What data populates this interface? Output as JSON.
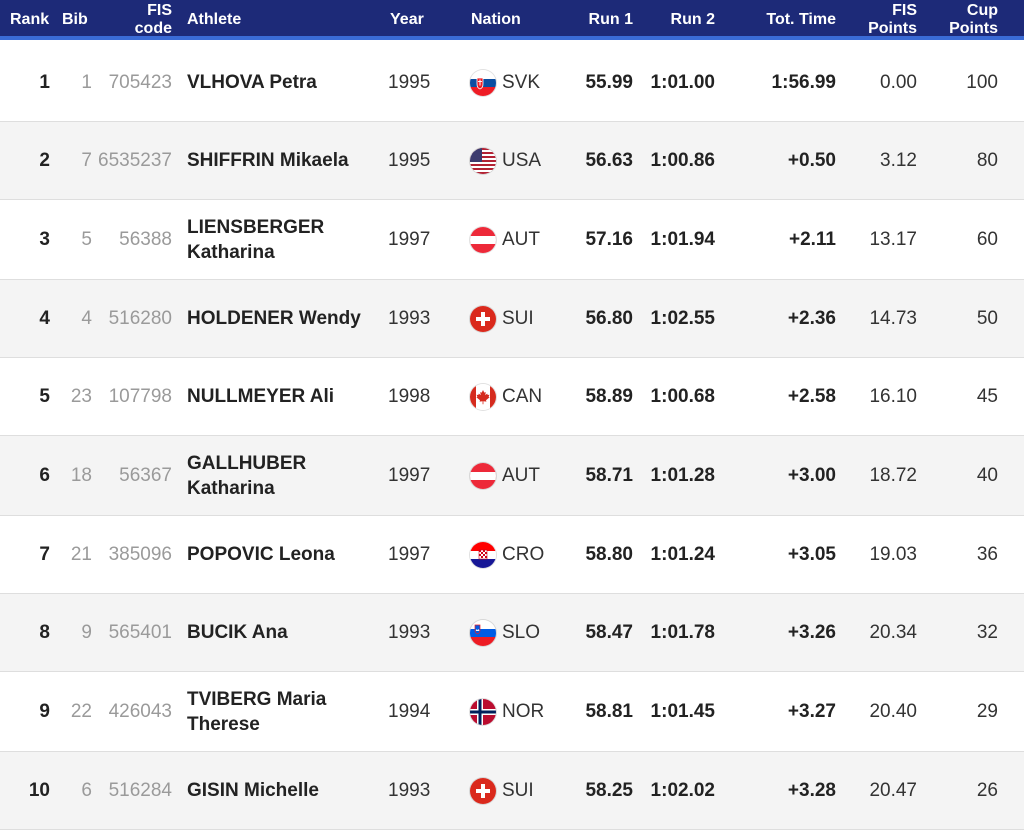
{
  "header": {
    "rank": "Rank",
    "bib": "Bib",
    "fis_code_line1": "FIS",
    "fis_code_line2": "code",
    "athlete": "Athlete",
    "year": "Year",
    "nation": "Nation",
    "run1": "Run 1",
    "run2": "Run 2",
    "tot_time": "Tot. Time",
    "fis_points_line1": "FIS",
    "fis_points_line2": "Points",
    "cup_points_line1": "Cup",
    "cup_points_line2": "Points"
  },
  "colors": {
    "header_bg": "#1d2a78",
    "header_accent": "#3a6bd6",
    "row_alt_bg": "#f4f4f4"
  },
  "rows": [
    {
      "rank": "1",
      "bib": "1",
      "fis_code": "705423",
      "athlete_line1": "VLHOVA Petra",
      "athlete_line2": "",
      "year": "1995",
      "nation": "SVK",
      "flag_icon": "slovakia-flag-icon",
      "run1": "55.99",
      "run2": "1:01.00",
      "tot_time": "1:56.99",
      "fis_points": "0.00",
      "cup_points": "100"
    },
    {
      "rank": "2",
      "bib": "7",
      "fis_code": "6535237",
      "athlete_line1": "SHIFFRIN Mikaela",
      "athlete_line2": "",
      "year": "1995",
      "nation": "USA",
      "flag_icon": "usa-flag-icon",
      "run1": "56.63",
      "run2": "1:00.86",
      "tot_time": "+0.50",
      "fis_points": "3.12",
      "cup_points": "80"
    },
    {
      "rank": "3",
      "bib": "5",
      "fis_code": "56388",
      "athlete_line1": "LIENSBERGER",
      "athlete_line2": "Katharina",
      "year": "1997",
      "nation": "AUT",
      "flag_icon": "austria-flag-icon",
      "run1": "57.16",
      "run2": "1:01.94",
      "tot_time": "+2.11",
      "fis_points": "13.17",
      "cup_points": "60"
    },
    {
      "rank": "4",
      "bib": "4",
      "fis_code": "516280",
      "athlete_line1": "HOLDENER Wendy",
      "athlete_line2": "",
      "year": "1993",
      "nation": "SUI",
      "flag_icon": "switzerland-flag-icon",
      "run1": "56.80",
      "run2": "1:02.55",
      "tot_time": "+2.36",
      "fis_points": "14.73",
      "cup_points": "50"
    },
    {
      "rank": "5",
      "bib": "23",
      "fis_code": "107798",
      "athlete_line1": "NULLMEYER Ali",
      "athlete_line2": "",
      "year": "1998",
      "nation": "CAN",
      "flag_icon": "canada-flag-icon",
      "run1": "58.89",
      "run2": "1:00.68",
      "tot_time": "+2.58",
      "fis_points": "16.10",
      "cup_points": "45"
    },
    {
      "rank": "6",
      "bib": "18",
      "fis_code": "56367",
      "athlete_line1": "GALLHUBER",
      "athlete_line2": "Katharina",
      "year": "1997",
      "nation": "AUT",
      "flag_icon": "austria-flag-icon",
      "run1": "58.71",
      "run2": "1:01.28",
      "tot_time": "+3.00",
      "fis_points": "18.72",
      "cup_points": "40"
    },
    {
      "rank": "7",
      "bib": "21",
      "fis_code": "385096",
      "athlete_line1": "POPOVIC Leona",
      "athlete_line2": "",
      "year": "1997",
      "nation": "CRO",
      "flag_icon": "croatia-flag-icon",
      "run1": "58.80",
      "run2": "1:01.24",
      "tot_time": "+3.05",
      "fis_points": "19.03",
      "cup_points": "36"
    },
    {
      "rank": "8",
      "bib": "9",
      "fis_code": "565401",
      "athlete_line1": "BUCIK Ana",
      "athlete_line2": "",
      "year": "1993",
      "nation": "SLO",
      "flag_icon": "slovenia-flag-icon",
      "run1": "58.47",
      "run2": "1:01.78",
      "tot_time": "+3.26",
      "fis_points": "20.34",
      "cup_points": "32"
    },
    {
      "rank": "9",
      "bib": "22",
      "fis_code": "426043",
      "athlete_line1": "TVIBERG Maria",
      "athlete_line2": "Therese",
      "year": "1994",
      "nation": "NOR",
      "flag_icon": "norway-flag-icon",
      "run1": "58.81",
      "run2": "1:01.45",
      "tot_time": "+3.27",
      "fis_points": "20.40",
      "cup_points": "29"
    },
    {
      "rank": "10",
      "bib": "6",
      "fis_code": "516284",
      "athlete_line1": "GISIN Michelle",
      "athlete_line2": "",
      "year": "1993",
      "nation": "SUI",
      "flag_icon": "switzerland-flag-icon",
      "run1": "58.25",
      "run2": "1:02.02",
      "tot_time": "+3.28",
      "fis_points": "20.47",
      "cup_points": "26"
    }
  ]
}
